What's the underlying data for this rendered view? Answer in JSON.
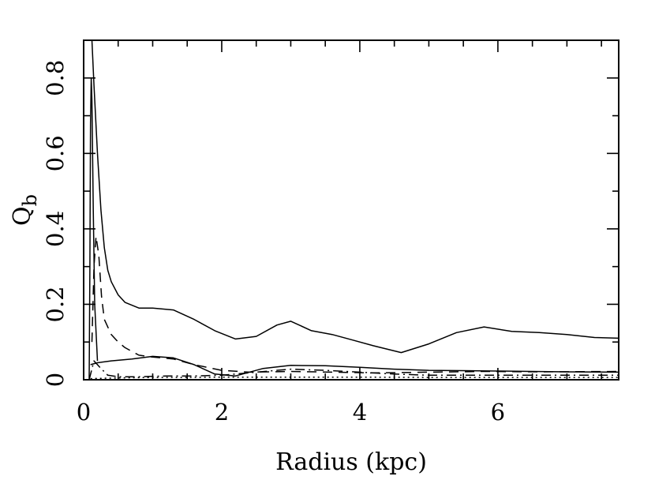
{
  "chart_data": {
    "type": "line",
    "xlabel": "Radius (kpc)",
    "ylabel_main": "Q",
    "ylabel_sub": "b",
    "xlim": [
      0,
      7.75
    ],
    "ylim": [
      0,
      0.9
    ],
    "xticks": [
      {
        "value": 0,
        "label": "0"
      },
      {
        "value": 2,
        "label": "2"
      },
      {
        "value": 4,
        "label": "4"
      },
      {
        "value": 6,
        "label": "6"
      }
    ],
    "yticks": [
      {
        "value": 0,
        "label": "0"
      },
      {
        "value": 0.2,
        "label": "0.2"
      },
      {
        "value": 0.4,
        "label": "0.4"
      },
      {
        "value": 0.6,
        "label": "0.6"
      },
      {
        "value": 0.8,
        "label": "0.8"
      }
    ],
    "grid": false,
    "series": [
      {
        "style": "solid",
        "x": [
          0.1,
          0.12,
          0.15,
          0.2,
          0.25,
          0.3,
          0.35,
          0.4,
          0.5,
          0.6,
          0.8,
          1.0,
          1.3,
          1.6,
          1.9,
          2.2,
          2.5,
          2.8,
          3.0,
          3.3,
          3.6,
          3.9,
          4.2,
          4.6,
          5.0,
          5.4,
          5.8,
          6.2,
          6.6,
          7.0,
          7.4,
          7.75
        ],
        "y": [
          0.95,
          0.9,
          0.78,
          0.6,
          0.45,
          0.35,
          0.29,
          0.26,
          0.225,
          0.205,
          0.19,
          0.19,
          0.185,
          0.16,
          0.13,
          0.108,
          0.115,
          0.145,
          0.155,
          0.13,
          0.12,
          0.105,
          0.09,
          0.072,
          0.095,
          0.125,
          0.14,
          0.128,
          0.125,
          0.12,
          0.112,
          0.11
        ]
      },
      {
        "style": "solid",
        "x": [
          0.08,
          0.09,
          0.1,
          0.11,
          0.12,
          0.14,
          0.16,
          0.2
        ],
        "y": [
          0.0,
          0.3,
          0.68,
          0.8,
          0.74,
          0.45,
          0.2,
          0.05
        ]
      },
      {
        "style": "dashed",
        "x": [
          0.12,
          0.15,
          0.18,
          0.22,
          0.26,
          0.3,
          0.4,
          0.5,
          0.6,
          0.8,
          1.0,
          1.3,
          1.6,
          2.0,
          2.4,
          3.0,
          3.6,
          4.2,
          5.0,
          5.8,
          6.6,
          7.75
        ],
        "y": [
          0.1,
          0.3,
          0.38,
          0.33,
          0.22,
          0.16,
          0.12,
          0.1,
          0.085,
          0.065,
          0.06,
          0.055,
          0.04,
          0.025,
          0.02,
          0.022,
          0.02,
          0.018,
          0.02,
          0.022,
          0.021,
          0.022
        ]
      },
      {
        "style": "solid",
        "x": [
          0.1,
          0.2,
          0.4,
          0.7,
          1.0,
          1.3,
          1.6,
          1.9,
          2.2,
          2.6,
          3.0,
          3.5,
          4.0,
          4.5,
          5.0,
          5.5,
          6.0,
          6.5,
          7.0,
          7.75
        ],
        "y": [
          0.04,
          0.045,
          0.05,
          0.055,
          0.062,
          0.058,
          0.04,
          0.015,
          0.01,
          0.03,
          0.038,
          0.037,
          0.033,
          0.028,
          0.025,
          0.024,
          0.023,
          0.022,
          0.021,
          0.02
        ]
      },
      {
        "style": "dash-dot",
        "x": [
          0.08,
          0.15,
          0.25,
          0.35,
          0.5,
          0.8,
          1.2,
          1.6,
          2.0,
          2.5,
          3.0,
          3.5,
          4.0,
          4.5,
          5.0,
          6.0,
          7.0,
          7.75
        ],
        "y": [
          0.0,
          0.05,
          0.03,
          0.012,
          0.008,
          0.008,
          0.01,
          0.01,
          0.012,
          0.02,
          0.028,
          0.025,
          0.02,
          0.015,
          0.012,
          0.012,
          0.012,
          0.012
        ]
      },
      {
        "style": "dotted",
        "x": [
          0.1,
          0.3,
          0.6,
          1.0,
          1.5,
          2.0,
          3.0,
          4.0,
          5.0,
          6.0,
          7.0,
          7.75
        ],
        "y": [
          0.003,
          0.004,
          0.005,
          0.006,
          0.006,
          0.007,
          0.007,
          0.007,
          0.006,
          0.006,
          0.006,
          0.006
        ]
      }
    ]
  }
}
